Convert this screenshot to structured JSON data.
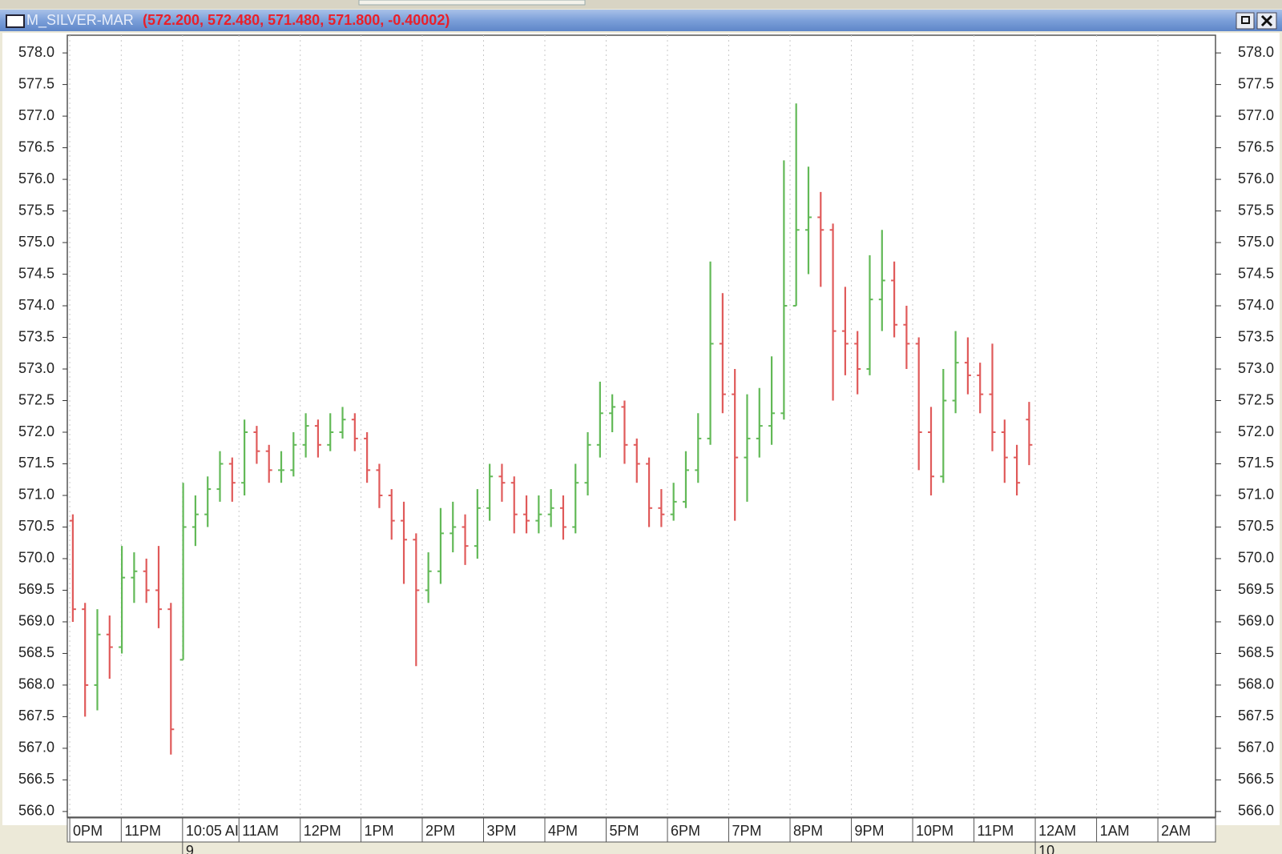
{
  "window": {
    "symbol": "M_SILVER-MAR",
    "quote": "(572.200, 572.480, 571.480, 571.800, -0.40002)"
  },
  "chart_data": {
    "type": "ohlc",
    "up_color": "#62b957",
    "down_color": "#e05a5a",
    "xgrid": true,
    "ylim": [
      565.91,
      578.28
    ],
    "yticks": [
      {
        "value": 566.0,
        "label": "566.0"
      },
      {
        "value": 566.5,
        "label": "566.5"
      },
      {
        "value": 567.0,
        "label": "567.0"
      },
      {
        "value": 567.5,
        "label": "567.5"
      },
      {
        "value": 568.0,
        "label": "568.0"
      },
      {
        "value": 568.5,
        "label": "568.5"
      },
      {
        "value": 569.0,
        "label": "569.0"
      },
      {
        "value": 569.5,
        "label": "569.5"
      },
      {
        "value": 570.0,
        "label": "570.0"
      },
      {
        "value": 570.5,
        "label": "570.5"
      },
      {
        "value": 571.0,
        "label": "571.0"
      },
      {
        "value": 571.5,
        "label": "571.5"
      },
      {
        "value": 572.0,
        "label": "572.0"
      },
      {
        "value": 572.5,
        "label": "572.5"
      },
      {
        "value": 573.0,
        "label": "573.0"
      },
      {
        "value": 573.5,
        "label": "573.5"
      },
      {
        "value": 574.0,
        "label": "574.0"
      },
      {
        "value": 574.5,
        "label": "574.5"
      },
      {
        "value": 575.0,
        "label": "575.0"
      },
      {
        "value": 575.5,
        "label": "575.5"
      },
      {
        "value": 576.0,
        "label": "576.0"
      },
      {
        "value": 576.5,
        "label": "576.5"
      },
      {
        "value": 577.0,
        "label": "577.0"
      },
      {
        "value": 577.5,
        "label": "577.5"
      },
      {
        "value": 578.0,
        "label": "578.0"
      }
    ],
    "xlim": [
      -0.04,
      18.69
    ],
    "xticks": [
      {
        "value": 0,
        "label": "0PM"
      },
      {
        "value": 0.84,
        "label": "11PM"
      },
      {
        "value": 1.84,
        "label": "10:05 AI"
      },
      {
        "value": 2.76,
        "label": "11AM"
      },
      {
        "value": 3.76,
        "label": "12PM"
      },
      {
        "value": 4.75,
        "label": "1PM"
      },
      {
        "value": 5.75,
        "label": "2PM"
      },
      {
        "value": 6.75,
        "label": "3PM"
      },
      {
        "value": 7.75,
        "label": "4PM"
      },
      {
        "value": 8.75,
        "label": "5PM"
      },
      {
        "value": 9.75,
        "label": "6PM"
      },
      {
        "value": 10.75,
        "label": "7PM"
      },
      {
        "value": 11.75,
        "label": "8PM"
      },
      {
        "value": 12.75,
        "label": "9PM"
      },
      {
        "value": 13.75,
        "label": "10PM"
      },
      {
        "value": 14.75,
        "label": "11PM"
      },
      {
        "value": 15.75,
        "label": "12AM"
      },
      {
        "value": 16.75,
        "label": "1AM"
      },
      {
        "value": 17.75,
        "label": "2AM"
      }
    ],
    "date_labels": [
      {
        "value": 1.84,
        "label": "9"
      },
      {
        "value": 15.75,
        "label": "10"
      }
    ],
    "x": [
      0.05,
      0.25,
      0.45,
      0.65,
      0.85,
      1.05,
      1.25,
      1.45,
      1.65,
      1.85,
      2.05,
      2.25,
      2.45,
      2.65,
      2.85,
      3.05,
      3.25,
      3.45,
      3.65,
      3.85,
      4.05,
      4.25,
      4.45,
      4.65,
      4.85,
      5.05,
      5.25,
      5.45,
      5.65,
      5.85,
      6.05,
      6.25,
      6.45,
      6.65,
      6.85,
      7.05,
      7.25,
      7.45,
      7.65,
      7.85,
      8.05,
      8.25,
      8.45,
      8.65,
      8.85,
      9.05,
      9.25,
      9.45,
      9.65,
      9.85,
      10.05,
      10.25,
      10.45,
      10.65,
      10.85,
      11.05,
      11.25,
      11.45,
      11.65,
      11.85,
      12.05,
      12.25,
      12.45,
      12.65,
      12.85,
      13.05,
      13.25,
      13.45,
      13.65,
      13.85,
      14.05,
      14.25,
      14.45,
      14.65,
      14.85,
      15.05,
      15.25,
      15.45,
      15.65
    ],
    "ohlc": [
      [
        570.6,
        570.7,
        569.0,
        569.2
      ],
      [
        569.2,
        569.3,
        567.5,
        568.0
      ],
      [
        568.0,
        569.2,
        567.6,
        568.8
      ],
      [
        568.8,
        569.1,
        568.1,
        568.6
      ],
      [
        568.6,
        570.2,
        568.5,
        569.7
      ],
      [
        569.7,
        570.1,
        569.3,
        569.8
      ],
      [
        569.8,
        570.0,
        569.3,
        569.5
      ],
      [
        569.5,
        570.2,
        568.9,
        569.2
      ],
      [
        569.2,
        569.3,
        566.9,
        567.3
      ],
      [
        568.4,
        571.2,
        568.4,
        570.5
      ],
      [
        570.5,
        571.0,
        570.2,
        570.7
      ],
      [
        570.7,
        571.3,
        570.5,
        571.1
      ],
      [
        571.1,
        571.7,
        570.9,
        571.5
      ],
      [
        571.5,
        571.6,
        570.9,
        571.2
      ],
      [
        571.2,
        572.2,
        571.0,
        572.0
      ],
      [
        572.0,
        572.1,
        571.5,
        571.7
      ],
      [
        571.7,
        571.8,
        571.2,
        571.4
      ],
      [
        571.4,
        571.7,
        571.2,
        571.4
      ],
      [
        571.4,
        572.0,
        571.3,
        571.8
      ],
      [
        571.8,
        572.3,
        571.6,
        572.1
      ],
      [
        572.1,
        572.2,
        571.6,
        571.8
      ],
      [
        571.8,
        572.3,
        571.7,
        572.0
      ],
      [
        572.0,
        572.4,
        571.9,
        572.2
      ],
      [
        572.2,
        572.3,
        571.7,
        571.9
      ],
      [
        571.9,
        572.0,
        571.2,
        571.4
      ],
      [
        571.4,
        571.5,
        570.8,
        571.0
      ],
      [
        571.0,
        571.1,
        570.3,
        570.6
      ],
      [
        570.6,
        570.9,
        569.6,
        570.3
      ],
      [
        570.3,
        570.4,
        568.3,
        569.5
      ],
      [
        569.5,
        570.1,
        569.3,
        569.8
      ],
      [
        569.8,
        570.8,
        569.6,
        570.4
      ],
      [
        570.4,
        570.9,
        570.1,
        570.5
      ],
      [
        570.5,
        570.7,
        569.9,
        570.2
      ],
      [
        570.2,
        571.1,
        570.0,
        570.8
      ],
      [
        570.8,
        571.5,
        570.6,
        571.3
      ],
      [
        571.3,
        571.5,
        570.9,
        571.2
      ],
      [
        571.2,
        571.3,
        570.4,
        570.7
      ],
      [
        570.7,
        571.0,
        570.4,
        570.6
      ],
      [
        570.6,
        571.0,
        570.4,
        570.7
      ],
      [
        570.7,
        571.1,
        570.5,
        570.8
      ],
      [
        570.8,
        571.0,
        570.3,
        570.5
      ],
      [
        570.5,
        571.5,
        570.4,
        571.2
      ],
      [
        571.2,
        572.0,
        571.0,
        571.8
      ],
      [
        571.8,
        572.8,
        571.6,
        572.3
      ],
      [
        572.3,
        572.6,
        572.0,
        572.4
      ],
      [
        572.4,
        572.5,
        571.5,
        571.8
      ],
      [
        571.8,
        571.9,
        571.2,
        571.5
      ],
      [
        571.5,
        571.6,
        570.5,
        570.8
      ],
      [
        570.8,
        571.1,
        570.5,
        570.7
      ],
      [
        570.7,
        571.2,
        570.6,
        570.9
      ],
      [
        570.9,
        571.7,
        570.8,
        571.4
      ],
      [
        571.4,
        572.3,
        571.2,
        571.9
      ],
      [
        571.9,
        574.7,
        571.8,
        573.4
      ],
      [
        573.4,
        574.2,
        572.3,
        572.6
      ],
      [
        572.6,
        573.0,
        570.6,
        571.6
      ],
      [
        571.6,
        572.6,
        570.9,
        571.9
      ],
      [
        571.9,
        572.7,
        571.6,
        572.1
      ],
      [
        572.1,
        573.2,
        571.8,
        572.3
      ],
      [
        572.3,
        576.3,
        572.2,
        574.0
      ],
      [
        574.0,
        577.2,
        574.0,
        575.2
      ],
      [
        575.2,
        576.2,
        574.5,
        575.4
      ],
      [
        575.4,
        575.8,
        574.3,
        575.2
      ],
      [
        575.2,
        575.3,
        572.5,
        573.6
      ],
      [
        573.6,
        574.3,
        572.9,
        573.4
      ],
      [
        573.4,
        573.6,
        572.6,
        573.0
      ],
      [
        573.0,
        574.8,
        572.9,
        574.1
      ],
      [
        574.1,
        575.2,
        573.6,
        574.4
      ],
      [
        574.4,
        574.7,
        573.5,
        573.7
      ],
      [
        573.7,
        574.0,
        573.0,
        573.4
      ],
      [
        573.4,
        573.5,
        571.4,
        572.0
      ],
      [
        572.0,
        572.4,
        571.0,
        571.3
      ],
      [
        571.3,
        573.0,
        571.2,
        572.5
      ],
      [
        572.5,
        573.6,
        572.3,
        573.1
      ],
      [
        573.1,
        573.5,
        572.6,
        572.9
      ],
      [
        572.9,
        573.1,
        572.3,
        572.6
      ],
      [
        572.6,
        573.4,
        571.7,
        572.0
      ],
      [
        572.0,
        572.2,
        571.2,
        571.6
      ],
      [
        571.6,
        571.8,
        571.0,
        571.2
      ],
      [
        572.2,
        572.48,
        571.48,
        571.8
      ]
    ]
  }
}
